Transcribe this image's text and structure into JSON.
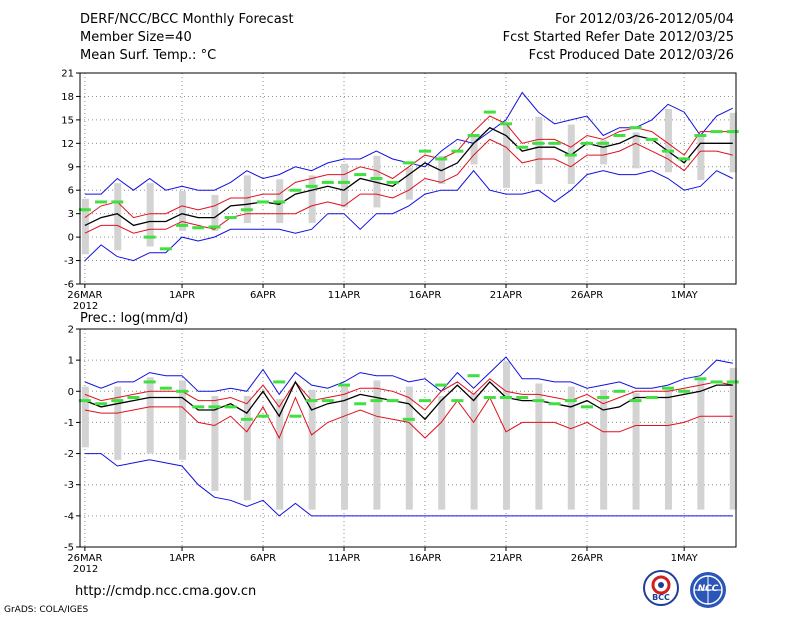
{
  "header": {
    "title": "DERF/NCC/BCC Monthly Forecast",
    "member_size": "Member Size=40",
    "variable1": "Mean Surf. Temp.: °C",
    "forecast_period": "For 2012/03/26-2012/05/04",
    "started_date": "Fcst Started Refer Date 2012/03/25",
    "produced_date": "Fcst Produced Date 2012/03/26"
  },
  "panel2": {
    "label": "Prec.: log(mm/d)"
  },
  "footer": {
    "url": "http://cmdp.ncc.cma.gov.cn",
    "credit": "GrADS: COLA/IGES",
    "logo1_text": "BCC",
    "logo2_text": "NCC"
  },
  "colors": {
    "ensemble_range": "#1010e0",
    "spread": "#e01020",
    "mean": "#000000",
    "observed": "#40e040",
    "bars": "#d3d3d3",
    "grid": "#909090"
  },
  "chart_data": [
    {
      "type": "line",
      "title": "Mean Surf. Temp.: °C",
      "xlabel": "",
      "ylabel": "°C",
      "ylim": [
        -6,
        21
      ],
      "yticks": [
        -6,
        -3,
        0,
        3,
        6,
        9,
        12,
        15,
        18,
        21
      ],
      "xticks": [
        {
          "day": 0,
          "label": "26MAR",
          "sublabel": "2012"
        },
        {
          "day": 6,
          "label": "1APR"
        },
        {
          "day": 11,
          "label": "6APR"
        },
        {
          "day": 16,
          "label": "11APR"
        },
        {
          "day": 21,
          "label": "16APR"
        },
        {
          "day": 26,
          "label": "21APR"
        },
        {
          "day": 31,
          "label": "26APR"
        },
        {
          "day": 37,
          "label": "1MAY"
        }
      ],
      "days": 40,
      "series": [
        {
          "name": "max",
          "color": "#1010e0",
          "values": [
            5.5,
            5.5,
            7.5,
            6,
            7.5,
            6,
            6.5,
            6,
            6,
            7,
            8.5,
            7.5,
            8,
            9,
            8.5,
            9.5,
            10,
            10,
            11,
            10,
            9.5,
            9,
            11,
            12.5,
            12,
            13.5,
            15,
            18.5,
            16,
            14.5,
            15,
            15.5,
            13,
            14,
            14,
            15,
            17,
            16,
            13,
            15.5,
            16.5
          ]
        },
        {
          "name": "upper",
          "color": "#e01020",
          "values": [
            2.5,
            4,
            4.5,
            2.5,
            3,
            3,
            4,
            3.5,
            4,
            5,
            5,
            5.5,
            5.5,
            7,
            7.5,
            8,
            8,
            9,
            8.5,
            7.5,
            9,
            10.5,
            10,
            11,
            13.5,
            15.5,
            14.5,
            12,
            12.5,
            12.5,
            11.5,
            13,
            12.5,
            13.5,
            14,
            13.5,
            12,
            10.5,
            13.5,
            13.5,
            13.5
          ]
        },
        {
          "name": "mean",
          "color": "#000000",
          "values": [
            1.5,
            2.5,
            3,
            1.5,
            2,
            2,
            3,
            2.5,
            2.5,
            4,
            4.2,
            4.5,
            4.2,
            5.5,
            6,
            6.5,
            6,
            7.5,
            7,
            6.5,
            8,
            9.5,
            8.5,
            9.5,
            12,
            14,
            13,
            11,
            11.5,
            11.5,
            10.5,
            12,
            11.5,
            12,
            13,
            12.5,
            11,
            9.5,
            12,
            12,
            12
          ]
        },
        {
          "name": "lower",
          "color": "#e01020",
          "values": [
            0.5,
            1.5,
            1.5,
            0.5,
            1,
            1,
            2,
            1.5,
            1,
            2.5,
            3,
            3,
            3,
            3,
            4,
            4.5,
            4,
            5.5,
            5.5,
            5,
            6,
            7.5,
            7,
            8,
            10.5,
            12.5,
            11.5,
            9.5,
            10,
            10,
            9,
            10.5,
            10.5,
            11,
            12,
            11,
            10,
            8.5,
            11,
            11,
            10.5
          ]
        },
        {
          "name": "min",
          "color": "#1010e0",
          "values": [
            -3,
            -1,
            -2.5,
            -3,
            -2,
            -2,
            0,
            -0.5,
            0,
            1,
            1,
            1,
            1,
            0.5,
            1,
            3,
            3,
            1,
            3,
            3,
            4,
            5.5,
            6,
            6,
            8.5,
            6,
            5.5,
            5.5,
            6,
            4.5,
            6,
            8,
            8.5,
            8,
            8,
            8.5,
            7.5,
            6,
            6.5,
            8.5,
            7.5
          ]
        },
        {
          "name": "observed",
          "color": "#40e040",
          "values": [
            3.5,
            4.5,
            4.5,
            null,
            0,
            -1.5,
            1.5,
            1.2,
            1.3,
            2.5,
            3.5,
            4.5,
            4.5,
            6,
            6.5,
            7,
            7,
            8,
            7.5,
            7,
            9.5,
            11,
            10,
            11,
            13,
            16,
            14.5,
            11.5,
            12,
            12,
            10.5,
            12,
            12,
            13,
            14,
            12.5,
            11,
            10,
            13,
            13.5,
            13.5
          ]
        }
      ]
    },
    {
      "type": "line",
      "title": "Prec.: log(mm/d)",
      "xlabel": "",
      "ylabel": "log(mm/d)",
      "ylim": [
        -5,
        2
      ],
      "yticks": [
        -5,
        -4,
        -3,
        -2,
        -1,
        0,
        1,
        2
      ],
      "xticks": [
        {
          "day": 0,
          "label": "26MAR",
          "sublabel": "2012"
        },
        {
          "day": 6,
          "label": "1APR"
        },
        {
          "day": 11,
          "label": "6APR"
        },
        {
          "day": 16,
          "label": "11APR"
        },
        {
          "day": 21,
          "label": "16APR"
        },
        {
          "day": 26,
          "label": "21APR"
        },
        {
          "day": 31,
          "label": "26APR"
        },
        {
          "day": 37,
          "label": "1MAY"
        }
      ],
      "days": 40,
      "series": [
        {
          "name": "max",
          "color": "#1010e0",
          "values": [
            0.3,
            0.1,
            0.3,
            0.3,
            0.6,
            0.5,
            0.5,
            0,
            0,
            0.1,
            0,
            0.7,
            -0.1,
            0.6,
            0.2,
            0.1,
            0.3,
            0.6,
            0.5,
            0.5,
            0.3,
            0.4,
            0,
            0.6,
            0.1,
            0.6,
            1.1,
            0.4,
            0.4,
            0.3,
            0.3,
            0.1,
            0.2,
            0.3,
            0.1,
            0.1,
            0.2,
            0.4,
            0.5,
            1,
            0.9
          ]
        },
        {
          "name": "upper",
          "color": "#e01020",
          "values": [
            -0.1,
            -0.3,
            -0.2,
            -0.1,
            0,
            0,
            0,
            -0.3,
            -0.3,
            -0.2,
            -0.4,
            0.2,
            -0.5,
            0.3,
            -0.3,
            -0.2,
            -0.1,
            0.1,
            0.1,
            0,
            -0.2,
            -0.6,
            0,
            0.3,
            -0.1,
            0.4,
            0,
            -0.1,
            -0.1,
            -0.2,
            -0.3,
            -0.1,
            -0.4,
            -0.2,
            0,
            0,
            0,
            0.1,
            0.2,
            0.3,
            0.2
          ]
        },
        {
          "name": "mean",
          "color": "#000000",
          "values": [
            -0.3,
            -0.5,
            -0.4,
            -0.3,
            -0.2,
            -0.2,
            -0.2,
            -0.6,
            -0.6,
            -0.4,
            -0.7,
            0,
            -0.8,
            0.3,
            -0.6,
            -0.4,
            -0.3,
            -0.1,
            -0.2,
            -0.3,
            -0.4,
            -0.9,
            -0.3,
            0.2,
            -0.3,
            0.3,
            -0.2,
            -0.3,
            -0.3,
            -0.4,
            -0.5,
            -0.3,
            -0.6,
            -0.5,
            -0.2,
            -0.2,
            -0.2,
            -0.1,
            0,
            0.2,
            0.2
          ]
        },
        {
          "name": "lower",
          "color": "#e01020",
          "values": [
            -0.6,
            -0.7,
            -0.7,
            -0.6,
            -0.5,
            -0.5,
            -0.5,
            -1,
            -1.1,
            -0.8,
            -1.3,
            -0.5,
            -1.5,
            -0.2,
            -1.4,
            -1,
            -0.8,
            -0.6,
            -0.8,
            -0.9,
            -1,
            -1.5,
            -1,
            -0.3,
            -1,
            -0.2,
            -1.3,
            -1,
            -1,
            -1,
            -1.2,
            -1,
            -1.3,
            -1.3,
            -1.1,
            -1.1,
            -1.1,
            -1,
            -0.8,
            -0.8,
            -0.8
          ]
        },
        {
          "name": "min",
          "color": "#1010e0",
          "values": [
            -2,
            -2,
            -2.4,
            -2.3,
            -2.2,
            -2.3,
            -2.4,
            -3,
            -3.4,
            -3.5,
            -3.7,
            -3.5,
            -4,
            -3.6,
            -4,
            -4,
            -4,
            -4,
            -4,
            -4,
            -4,
            -4,
            -4,
            -4,
            -4,
            -4,
            -4,
            -4,
            -4,
            -4,
            -4,
            -4,
            -4,
            -4,
            -4,
            -4,
            -4,
            -4,
            -4,
            -4,
            -4
          ]
        },
        {
          "name": "observed",
          "color": "#40e040",
          "values": [
            -0.3,
            -0.4,
            -0.3,
            -0.2,
            0.3,
            0.1,
            0,
            -0.5,
            -0.5,
            -0.5,
            -0.9,
            -0.8,
            0.3,
            -0.8,
            -0.3,
            -0.3,
            0.2,
            -0.4,
            -0.3,
            -0.3,
            -0.9,
            -0.3,
            0.2,
            -0.3,
            0.5,
            -0.2,
            -0.2,
            -0.2,
            -0.3,
            -0.4,
            -0.3,
            -0.5,
            -0.2,
            0,
            -0.3,
            -0.2,
            0.1,
            0,
            0.4,
            0.3,
            0.3
          ]
        }
      ]
    }
  ]
}
